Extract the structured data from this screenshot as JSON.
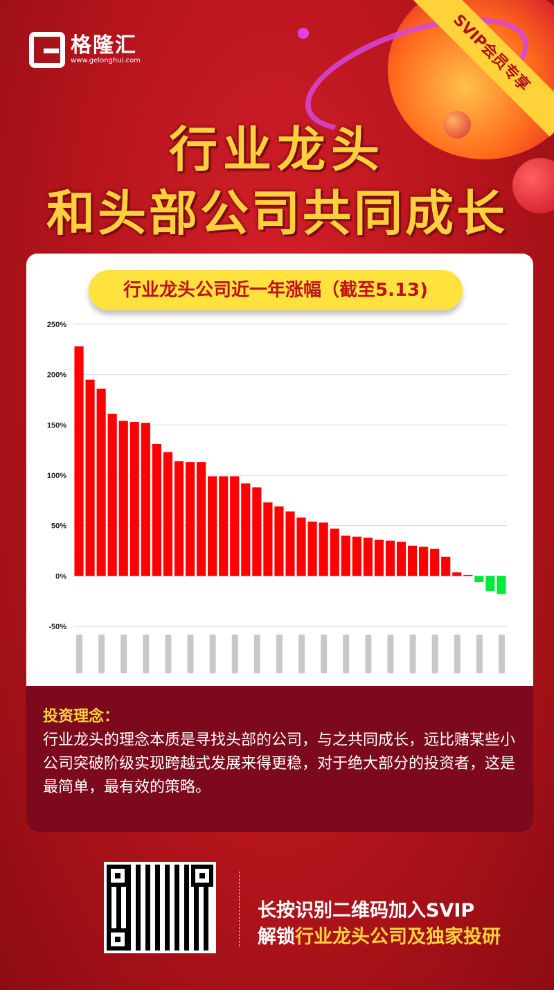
{
  "brand": {
    "name": "格隆汇",
    "url": "www.gelonghui.com",
    "primary_color": "#c8161e",
    "accent_color": "#ffd23a"
  },
  "ribbon": {
    "text": "SVIP会员专享"
  },
  "headline": {
    "line1": "行业龙头",
    "line2": "和头部公司共同成长"
  },
  "chart_data": {
    "type": "bar",
    "title": "行业龙头公司近一年涨幅（截至5.13)",
    "xlabel": "",
    "ylabel": "",
    "ylim": [
      -50,
      250
    ],
    "y_ticks": [
      "250%",
      "200%",
      "150%",
      "100%",
      "50%",
      "0%",
      "-50%"
    ],
    "y_tick_values": [
      250,
      200,
      150,
      100,
      50,
      0,
      -50
    ],
    "grid": true,
    "categories_blurred": true,
    "positive_color": "#ff0000",
    "negative_color": "#00e83c",
    "values": [
      228,
      195,
      186,
      161,
      154,
      153,
      152,
      131,
      123,
      114,
      113,
      113,
      99,
      99,
      99,
      92,
      88,
      73,
      69,
      64,
      58,
      54,
      53,
      47,
      40,
      39,
      38,
      36,
      35,
      34,
      30,
      29,
      27,
      19,
      3.5,
      1,
      -6,
      -15,
      -18
    ]
  },
  "info": {
    "title": "投资理念：",
    "body": "行业龙头的理念本质是寻找头部的公司，与之共同成长，远比赌某些小公司突破阶级实现跨越式发展来得更稳，对于绝大部分的投资者，这是最简单，最有效的策略。"
  },
  "cta": {
    "line1": "长按识别二维码加入SVIP",
    "line2_prefix": "解锁",
    "line2_highlight": "行业龙头公司及独家投研"
  }
}
